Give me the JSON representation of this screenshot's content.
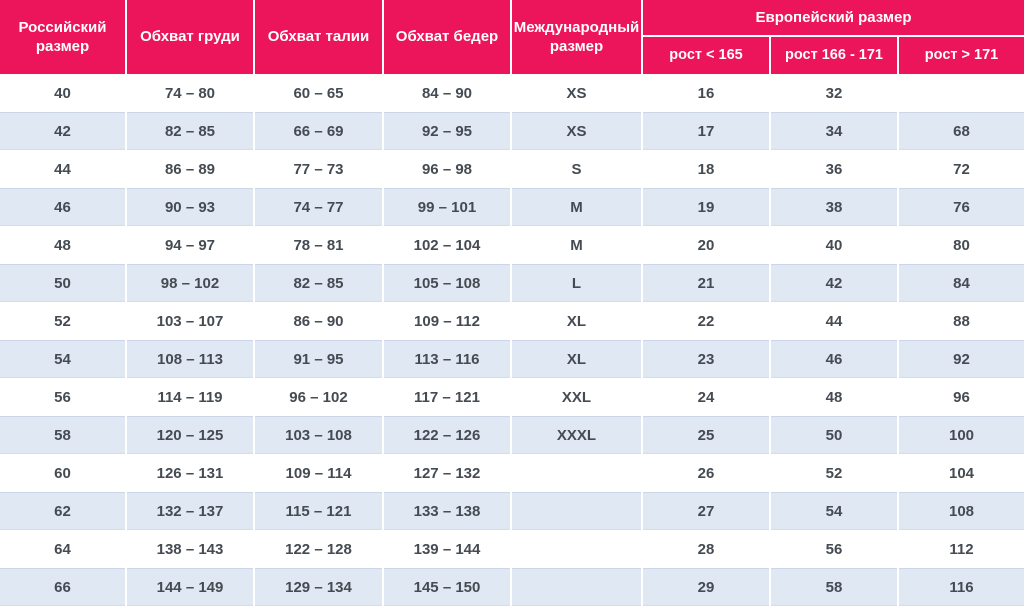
{
  "colors": {
    "header_bg": "#EC145A",
    "header_text": "#FFFFFF",
    "alt_row_bg": "#DFE8F3",
    "row_bg": "#FFFFFF",
    "body_text": "#454B52",
    "cell_divider": "#FFFFFF"
  },
  "chart_data": {
    "type": "table",
    "title": "",
    "columns": [
      "Российский размер",
      "Обхват груди",
      "Обхват талии",
      "Обхват бедер",
      "Международный размер",
      "рост < 165",
      "рост 166 - 171",
      "рост > 171"
    ],
    "column_groups": [
      {
        "label": "Европейский размер",
        "spans": [
          "рост < 165",
          "рост 166 - 171",
          "рост > 171"
        ]
      }
    ],
    "rows": [
      [
        "40",
        "74 – 80",
        "60 – 65",
        "84 – 90",
        "XS",
        "16",
        "32",
        ""
      ],
      [
        "42",
        "82 – 85",
        "66 – 69",
        "92 – 95",
        "XS",
        "17",
        "34",
        "68"
      ],
      [
        "44",
        "86 – 89",
        "77 – 73",
        "96 – 98",
        "S",
        "18",
        "36",
        "72"
      ],
      [
        "46",
        "90 – 93",
        "74 – 77",
        "99 – 101",
        "M",
        "19",
        "38",
        "76"
      ],
      [
        "48",
        "94 – 97",
        "78 – 81",
        "102 – 104",
        "M",
        "20",
        "40",
        "80"
      ],
      [
        "50",
        "98 – 102",
        "82 – 85",
        "105 – 108",
        "L",
        "21",
        "42",
        "84"
      ],
      [
        "52",
        "103 – 107",
        "86 – 90",
        "109 – 112",
        "XL",
        "22",
        "44",
        "88"
      ],
      [
        "54",
        "108 – 113",
        "91 – 95",
        "113 – 116",
        "XL",
        "23",
        "46",
        "92"
      ],
      [
        "56",
        "114 – 119",
        "96 – 102",
        "117 – 121",
        "XXL",
        "24",
        "48",
        "96"
      ],
      [
        "58",
        "120 – 125",
        "103 – 108",
        "122 – 126",
        "XXXL",
        "25",
        "50",
        "100"
      ],
      [
        "60",
        "126 – 131",
        "109 – 114",
        "127 – 132",
        "",
        "26",
        "52",
        "104"
      ],
      [
        "62",
        "132 – 137",
        "115 – 121",
        "133 – 138",
        "",
        "27",
        "54",
        "108"
      ],
      [
        "64",
        "138 – 143",
        "122 – 128",
        "139 – 144",
        "",
        "28",
        "56",
        "112"
      ],
      [
        "66",
        "144 – 149",
        "129 – 134",
        "145 – 150",
        "",
        "29",
        "58",
        "116"
      ]
    ]
  }
}
